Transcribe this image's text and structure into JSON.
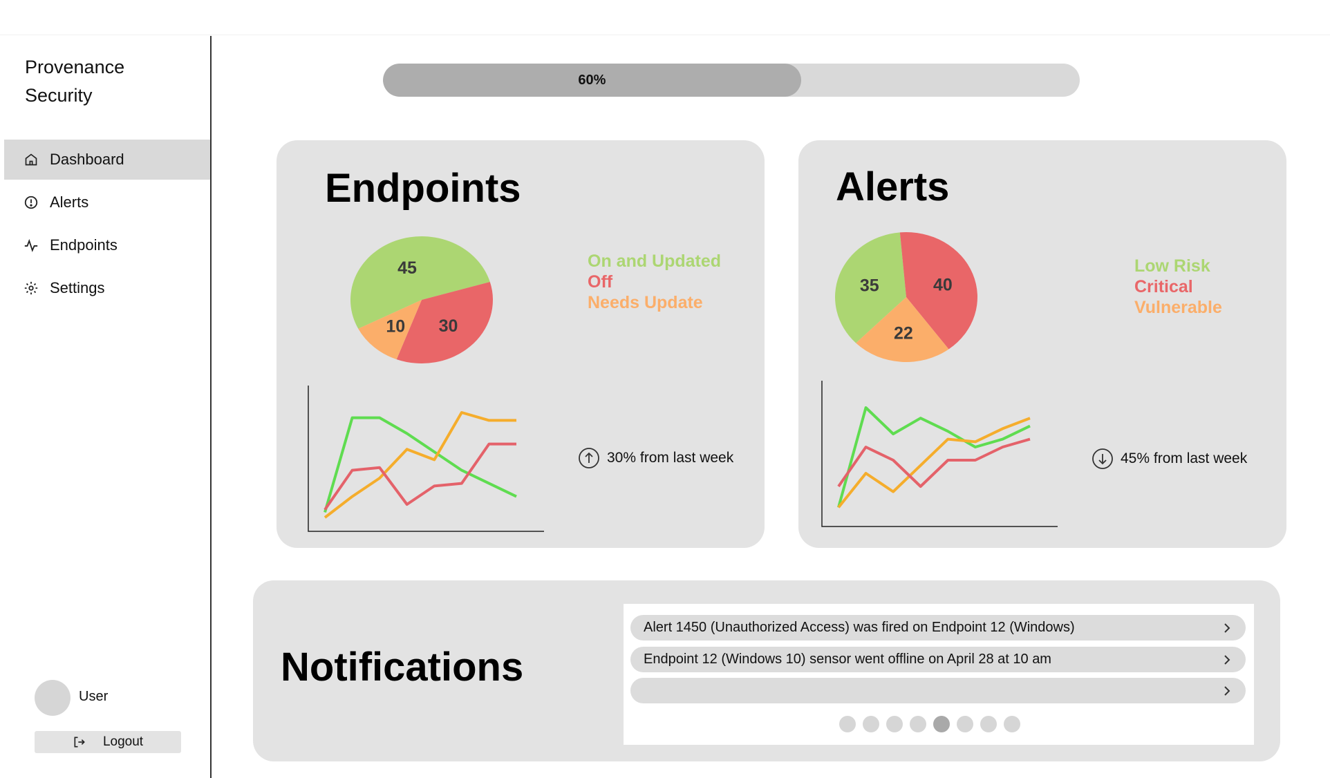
{
  "app": {
    "brand": "Provenance\nSecurity"
  },
  "sidebar": {
    "items": [
      {
        "label": "Dashboard",
        "icon": "home-icon",
        "active": true
      },
      {
        "label": "Alerts",
        "icon": "alert-circle-icon",
        "active": false
      },
      {
        "label": "Endpoints",
        "icon": "activity-icon",
        "active": false
      },
      {
        "label": "Settings",
        "icon": "gear-icon",
        "active": false
      }
    ]
  },
  "user": {
    "name": "User",
    "logout_label": "Logout"
  },
  "progress": {
    "value": 0.6,
    "label": "60%"
  },
  "colors": {
    "green": "#acd672",
    "red": "#e96668",
    "orange": "#fbae6a",
    "line_green": "#5fdc50",
    "line_orange": "#f5ad2c",
    "line_red": "#e4626a"
  },
  "endpoints_card": {
    "title": "Endpoints",
    "legend": [
      "On and Updated",
      "Off",
      "Needs Update"
    ],
    "trend_text": "30% from last week",
    "trend_direction": "up",
    "chart_data": {
      "type": "pie",
      "labels": [
        "On and Updated",
        "Off",
        "Needs Update"
      ],
      "values": [
        45,
        30,
        10
      ],
      "colors": [
        "#acd672",
        "#e96668",
        "#fbae6a"
      ]
    },
    "line_chart": {
      "type": "line",
      "series": [
        {
          "color": "#5fdc50",
          "values": [
            2,
            38,
            38,
            32,
            25,
            18,
            13,
            8
          ]
        },
        {
          "color": "#f5ad2c",
          "values": [
            0,
            8,
            15,
            26,
            22,
            40,
            37,
            37
          ]
        },
        {
          "color": "#e4626a",
          "values": [
            3,
            18,
            19,
            5,
            12,
            13,
            28,
            28
          ]
        }
      ]
    }
  },
  "alerts_card": {
    "title": "Alerts",
    "legend": [
      "Low Risk",
      "Critical",
      "Vulnerable"
    ],
    "trend_text": "45% from last week",
    "trend_direction": "down",
    "chart_data": {
      "type": "pie",
      "labels": [
        "Low Risk",
        "Critical",
        "Vulnerable"
      ],
      "values": [
        35,
        40,
        22
      ],
      "colors": [
        "#acd672",
        "#e96668",
        "#fbae6a"
      ]
    },
    "line_chart": {
      "type": "line",
      "series": [
        {
          "color": "#5fdc50",
          "values": [
            2,
            40,
            30,
            36,
            31,
            25,
            28,
            33
          ]
        },
        {
          "color": "#f5ad2c",
          "values": [
            2,
            15,
            8,
            18,
            28,
            27,
            32,
            36
          ]
        },
        {
          "color": "#e4626a",
          "values": [
            10,
            25,
            20,
            10,
            20,
            20,
            25,
            28
          ]
        }
      ]
    }
  },
  "notifications": {
    "title": "Notifications",
    "items": [
      "Alert 1450 (Unauthorized Access) was fired on Endpoint 12 (Windows)",
      "Endpoint 12 (Windows 10) sensor went offline on April 28 at 10 am",
      ""
    ],
    "pages": 8,
    "current_page": 5
  }
}
